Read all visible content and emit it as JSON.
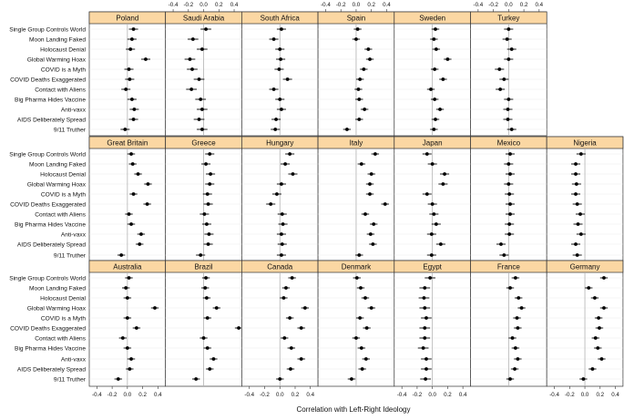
{
  "chart_data": {
    "type": "dotplot",
    "xlabel": "Correlation with Left-Right Ideology",
    "xlim": [
      -0.5,
      0.5
    ],
    "xticks": [
      "-0.4",
      "-0.2",
      "0.0",
      "0.2",
      "0.4"
    ],
    "xtick_values": [
      -0.4,
      -0.2,
      0.0,
      0.2,
      0.4
    ],
    "categories": [
      "Single Group Controls World",
      "Moon Landing Faked",
      "Holocaust Denial",
      "Global Warming Hoax",
      "COVID is a Myth",
      "COVID Deaths Exaggerated",
      "Contact with Aliens",
      "Big Pharma Hides Vaccine",
      "Anti-vaxx",
      "AIDS Deliberately Spread",
      "9/11 Truther"
    ],
    "panels": [
      {
        "country": "Poland",
        "values": [
          0.08,
          0.06,
          0.04,
          0.24,
          0.02,
          0.03,
          -0.02,
          0.06,
          0.09,
          0.08,
          -0.03
        ],
        "halfwidth": [
          0.06,
          0.06,
          0.06,
          0.06,
          0.06,
          0.06,
          0.06,
          0.06,
          0.06,
          0.06,
          0.06
        ]
      },
      {
        "country": "Saudi Arabia",
        "values": [
          0.03,
          -0.14,
          -0.02,
          -0.18,
          -0.15,
          -0.06,
          -0.16,
          -0.04,
          -0.02,
          -0.06,
          -0.02
        ],
        "halfwidth": [
          0.07,
          0.07,
          0.07,
          0.07,
          0.07,
          0.07,
          0.07,
          0.07,
          0.07,
          0.07,
          0.07
        ]
      },
      {
        "country": "South Africa",
        "values": [
          0.02,
          -0.08,
          0.0,
          0.01,
          -0.01,
          0.1,
          -0.08,
          0.0,
          0.02,
          -0.05,
          -0.06
        ],
        "halfwidth": [
          0.06,
          0.06,
          0.06,
          0.06,
          0.06,
          0.06,
          0.06,
          0.06,
          0.06,
          0.06,
          0.06
        ]
      },
      {
        "country": "Spain",
        "values": [
          0.02,
          0.0,
          0.16,
          0.18,
          0.1,
          0.05,
          0.03,
          0.04,
          0.11,
          0.04,
          -0.12
        ],
        "halfwidth": [
          0.05,
          0.05,
          0.05,
          0.05,
          0.05,
          0.05,
          0.05,
          0.05,
          0.05,
          0.05,
          0.05
        ]
      },
      {
        "country": "Sweden",
        "values": [
          0.04,
          0.02,
          0.05,
          0.2,
          0.03,
          0.14,
          -0.02,
          0.03,
          0.1,
          0.04,
          0.02
        ],
        "halfwidth": [
          0.05,
          0.05,
          0.05,
          0.05,
          0.05,
          0.05,
          0.05,
          0.05,
          0.05,
          0.05,
          0.05
        ]
      },
      {
        "country": "Turkey",
        "values": [
          0.0,
          -0.02,
          0.04,
          0.0,
          -0.12,
          -0.06,
          -0.11,
          0.0,
          -0.01,
          -0.01,
          0.04
        ],
        "halfwidth": [
          0.06,
          0.06,
          0.06,
          0.06,
          0.06,
          0.06,
          0.06,
          0.06,
          0.06,
          0.06,
          0.06
        ]
      },
      {
        "country": "Great Britain",
        "values": [
          0.05,
          0.07,
          0.14,
          0.27,
          0.08,
          0.26,
          0.02,
          0.05,
          0.18,
          0.16,
          -0.08
        ],
        "halfwidth": [
          0.05,
          0.05,
          0.05,
          0.05,
          0.05,
          0.05,
          0.05,
          0.05,
          0.05,
          0.05,
          0.05
        ]
      },
      {
        "country": "Greece",
        "values": [
          0.08,
          0.03,
          0.09,
          0.08,
          0.05,
          0.06,
          0.01,
          0.04,
          0.07,
          0.06,
          -0.04
        ],
        "halfwidth": [
          0.06,
          0.06,
          0.06,
          0.06,
          0.06,
          0.06,
          0.06,
          0.06,
          0.06,
          0.06,
          0.06
        ]
      },
      {
        "country": "Hungary",
        "values": [
          0.13,
          0.07,
          0.17,
          0.02,
          -0.04,
          -0.12,
          0.03,
          0.04,
          0.02,
          0.03,
          0.02
        ],
        "halfwidth": [
          0.06,
          0.06,
          0.06,
          0.06,
          0.06,
          0.06,
          0.06,
          0.06,
          0.06,
          0.06,
          0.06
        ]
      },
      {
        "country": "Italy",
        "values": [
          0.25,
          0.07,
          0.2,
          0.18,
          0.18,
          0.38,
          0.12,
          0.23,
          0.19,
          0.22,
          0.04
        ],
        "halfwidth": [
          0.05,
          0.05,
          0.05,
          0.05,
          0.05,
          0.05,
          0.05,
          0.05,
          0.05,
          0.05,
          0.05
        ]
      },
      {
        "country": "Japan",
        "values": [
          -0.07,
          0.0,
          0.16,
          0.14,
          -0.07,
          0.0,
          0.02,
          0.05,
          -0.01,
          0.11,
          -0.01
        ],
        "halfwidth": [
          0.06,
          0.06,
          0.06,
          0.06,
          0.06,
          0.06,
          0.06,
          0.06,
          0.06,
          0.06,
          0.06
        ]
      },
      {
        "country": "Mexico",
        "values": [
          0.02,
          0.0,
          0.02,
          0.0,
          0.01,
          0.02,
          0.02,
          0.01,
          0.01,
          -0.1,
          -0.06
        ],
        "halfwidth": [
          0.06,
          0.06,
          0.06,
          0.06,
          0.06,
          0.06,
          0.06,
          0.06,
          0.06,
          0.06,
          0.06
        ]
      },
      {
        "country": "Nigeria",
        "values": [
          -0.05,
          -0.12,
          -0.12,
          -0.11,
          -0.12,
          -0.1,
          -0.06,
          -0.09,
          -0.05,
          -0.12,
          -0.1
        ],
        "halfwidth": [
          0.06,
          0.06,
          0.06,
          0.06,
          0.06,
          0.06,
          0.06,
          0.06,
          0.06,
          0.06,
          0.06
        ]
      },
      {
        "country": "Australia",
        "values": [
          0.02,
          -0.02,
          0.0,
          0.36,
          0.0,
          0.12,
          -0.06,
          0.0,
          0.05,
          0.03,
          -0.12
        ],
        "halfwidth": [
          0.05,
          0.05,
          0.05,
          0.05,
          0.05,
          0.05,
          0.05,
          0.05,
          0.05,
          0.05,
          0.05
        ]
      },
      {
        "country": "Brazil",
        "values": [
          0.03,
          0.02,
          0.04,
          0.17,
          0.05,
          0.46,
          0.0,
          0.05,
          0.13,
          0.08,
          -0.1
        ],
        "halfwidth": [
          0.05,
          0.05,
          0.05,
          0.05,
          0.05,
          0.05,
          0.05,
          0.05,
          0.05,
          0.05,
          0.05
        ]
      },
      {
        "country": "Canada",
        "values": [
          0.16,
          0.08,
          0.05,
          0.33,
          0.13,
          0.28,
          0.06,
          0.15,
          0.28,
          0.14,
          0.0
        ],
        "halfwidth": [
          0.05,
          0.05,
          0.05,
          0.05,
          0.05,
          0.05,
          0.05,
          0.05,
          0.05,
          0.05,
          0.05
        ]
      },
      {
        "country": "Denmark",
        "values": [
          0.01,
          0.06,
          0.12,
          0.2,
          0.05,
          0.14,
          0.0,
          0.07,
          0.13,
          0.08,
          -0.06
        ],
        "halfwidth": [
          0.05,
          0.05,
          0.05,
          0.05,
          0.05,
          0.05,
          0.05,
          0.05,
          0.05,
          0.05,
          0.05
        ]
      },
      {
        "country": "Egypt",
        "values": [
          -0.03,
          -0.1,
          -0.11,
          -0.1,
          -0.08,
          -0.1,
          -0.1,
          -0.12,
          -0.08,
          -0.08,
          -0.09
        ],
        "halfwidth": [
          0.07,
          0.07,
          0.07,
          0.07,
          0.07,
          0.07,
          0.07,
          0.07,
          0.07,
          0.07,
          0.07
        ]
      },
      {
        "country": "France",
        "values": [
          0.09,
          0.02,
          0.13,
          0.17,
          0.11,
          0.12,
          0.05,
          0.09,
          0.12,
          0.08,
          0.02
        ],
        "halfwidth": [
          0.05,
          0.05,
          0.05,
          0.05,
          0.05,
          0.05,
          0.05,
          0.05,
          0.05,
          0.05,
          0.05
        ]
      },
      {
        "country": "Germany",
        "values": [
          0.25,
          0.05,
          0.13,
          0.25,
          0.18,
          0.19,
          0.14,
          0.17,
          0.22,
          0.1,
          -0.02
        ],
        "halfwidth": [
          0.05,
          0.05,
          0.05,
          0.05,
          0.05,
          0.05,
          0.05,
          0.05,
          0.05,
          0.05,
          0.05
        ]
      }
    ]
  },
  "colors": {
    "strip": "#fbd7a3",
    "border": "#333333",
    "zero_line": "#b3b3b3",
    "grid_line": "#eeeeee",
    "point": "#000000"
  }
}
